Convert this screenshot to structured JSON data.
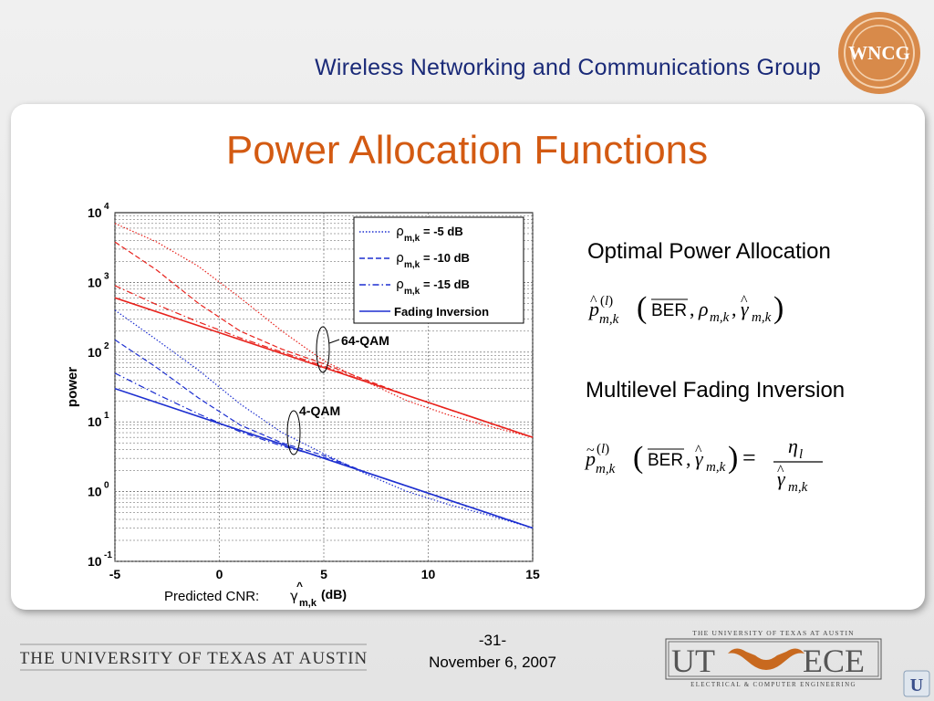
{
  "header": {
    "group_title": "Wireless Networking and Communications Group",
    "logo_text": "WNCG"
  },
  "slide": {
    "title": "Power Allocation Functions"
  },
  "side": {
    "heading1": "Optimal Power Allocation",
    "heading2": "Multilevel Fading Inversion"
  },
  "footer": {
    "university": "THE UNIVERSITY OF TEXAS AT AUSTIN",
    "page_number": "-31-",
    "date": "November 6, 2007",
    "ece_top": "THE UNIVERSITY OF TEXAS AT AUSTIN",
    "ece_ut": "UT",
    "ece_ece": "ECE",
    "ece_bottom": "ELECTRICAL & COMPUTER ENGINEERING"
  },
  "chart_data": {
    "type": "line",
    "xlabel": "Predicted CNR:",
    "xlabel_unit": "(dB)",
    "ylabel": "power",
    "xlim": [
      -5,
      15
    ],
    "ylim_log10": [
      -1,
      4
    ],
    "yscale": "log",
    "x_ticks": [
      "-5",
      "0",
      "5",
      "10",
      "15"
    ],
    "y_tick_exponents": [
      "4",
      "3",
      "2",
      "1",
      "0",
      "-1"
    ],
    "grid": true,
    "legend_position": "top-right",
    "legend": [
      {
        "label": "= -5 dB",
        "style": "dotted"
      },
      {
        "label": "= -10 dB",
        "style": "dashed"
      },
      {
        "label": "= -15 dB",
        "style": "dashdot"
      },
      {
        "label": "Fading Inversion",
        "style": "solid"
      }
    ],
    "annotations": [
      "64-QAM",
      "4-QAM"
    ],
    "colors": {
      "qam64": "#e8221c",
      "qam4": "#1d2fd0"
    },
    "series": [
      {
        "group": "64-QAM",
        "style": "dotted",
        "x": [
          -5,
          -3,
          -1,
          1,
          3,
          5,
          7,
          9,
          11,
          13,
          15
        ],
        "y": [
          7000,
          3800,
          1700,
          600,
          200,
          75,
          38,
          20,
          12.5,
          8.5,
          6
        ]
      },
      {
        "group": "64-QAM",
        "style": "dashed",
        "x": [
          -5,
          -3,
          -1,
          1,
          3,
          5,
          7,
          9,
          11,
          13,
          15
        ],
        "y": [
          3800,
          1500,
          500,
          200,
          110,
          68,
          40,
          24,
          15,
          9.5,
          6
        ]
      },
      {
        "group": "64-QAM",
        "style": "dashdot",
        "x": [
          -5,
          -3,
          -1,
          1,
          3,
          5,
          7,
          9,
          11,
          13,
          15
        ],
        "y": [
          900,
          480,
          270,
          160,
          100,
          63,
          38,
          24,
          15,
          9.5,
          6
        ]
      },
      {
        "group": "64-QAM",
        "style": "solid",
        "x": [
          -5,
          15
        ],
        "y": [
          600,
          6
        ]
      },
      {
        "group": "4-QAM",
        "style": "dotted",
        "x": [
          -5,
          -3,
          -1,
          1,
          3,
          5,
          7,
          9,
          11,
          13,
          15
        ],
        "y": [
          400,
          150,
          55,
          18,
          7,
          3.5,
          1.8,
          1,
          0.65,
          0.45,
          0.3
        ]
      },
      {
        "group": "4-QAM",
        "style": "dashed",
        "x": [
          -5,
          -3,
          -1,
          1,
          3,
          5,
          7,
          9,
          11,
          13,
          15
        ],
        "y": [
          150,
          60,
          22,
          9,
          5,
          3.3,
          1.9,
          1.2,
          0.75,
          0.48,
          0.3
        ]
      },
      {
        "group": "4-QAM",
        "style": "dashdot",
        "x": [
          -5,
          -3,
          -1,
          1,
          3,
          5,
          7,
          9,
          11,
          13,
          15
        ],
        "y": [
          50,
          25,
          13,
          7.2,
          4.5,
          3.1,
          1.9,
          1.2,
          0.75,
          0.48,
          0.3
        ]
      },
      {
        "group": "4-QAM",
        "style": "solid",
        "x": [
          -5,
          15
        ],
        "y": [
          30,
          0.3
        ]
      }
    ]
  }
}
